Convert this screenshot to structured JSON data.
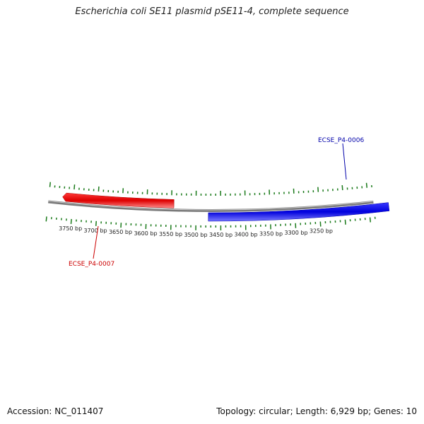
{
  "title": "Escherichia coli SE11 plasmid pSE11-4, complete sequence",
  "footer": {
    "accession": "Accession: NC_011407",
    "summary": "Topology: circular; Length: 6,929 bp; Genes: 10"
  },
  "colors": {
    "backbone": "#7a7a7a",
    "ticks": "#1a7a1a",
    "forward_gene": "#0000ee",
    "reverse_gene": "#ee0000"
  },
  "map": {
    "tick_labels": [
      {
        "bp": 3750,
        "label": "3750 bp"
      },
      {
        "bp": 3700,
        "label": "3700 bp"
      },
      {
        "bp": 3650,
        "label": "3650 bp"
      },
      {
        "bp": 3600,
        "label": "3600 bp"
      },
      {
        "bp": 3550,
        "label": "3550 bp"
      },
      {
        "bp": 3500,
        "label": "3500 bp"
      },
      {
        "bp": 3450,
        "label": "3450 bp"
      },
      {
        "bp": 3400,
        "label": "3400 bp"
      },
      {
        "bp": 3350,
        "label": "3350 bp"
      },
      {
        "bp": 3300,
        "label": "3300 bp"
      },
      {
        "bp": 3250,
        "label": "3250 bp"
      }
    ],
    "genes": [
      {
        "name": "ECSE_P4-0006",
        "strand": "forward",
        "color": "#0000ee"
      },
      {
        "name": "ECSE_P4-0007",
        "strand": "reverse",
        "color": "#ee0000"
      }
    ]
  }
}
